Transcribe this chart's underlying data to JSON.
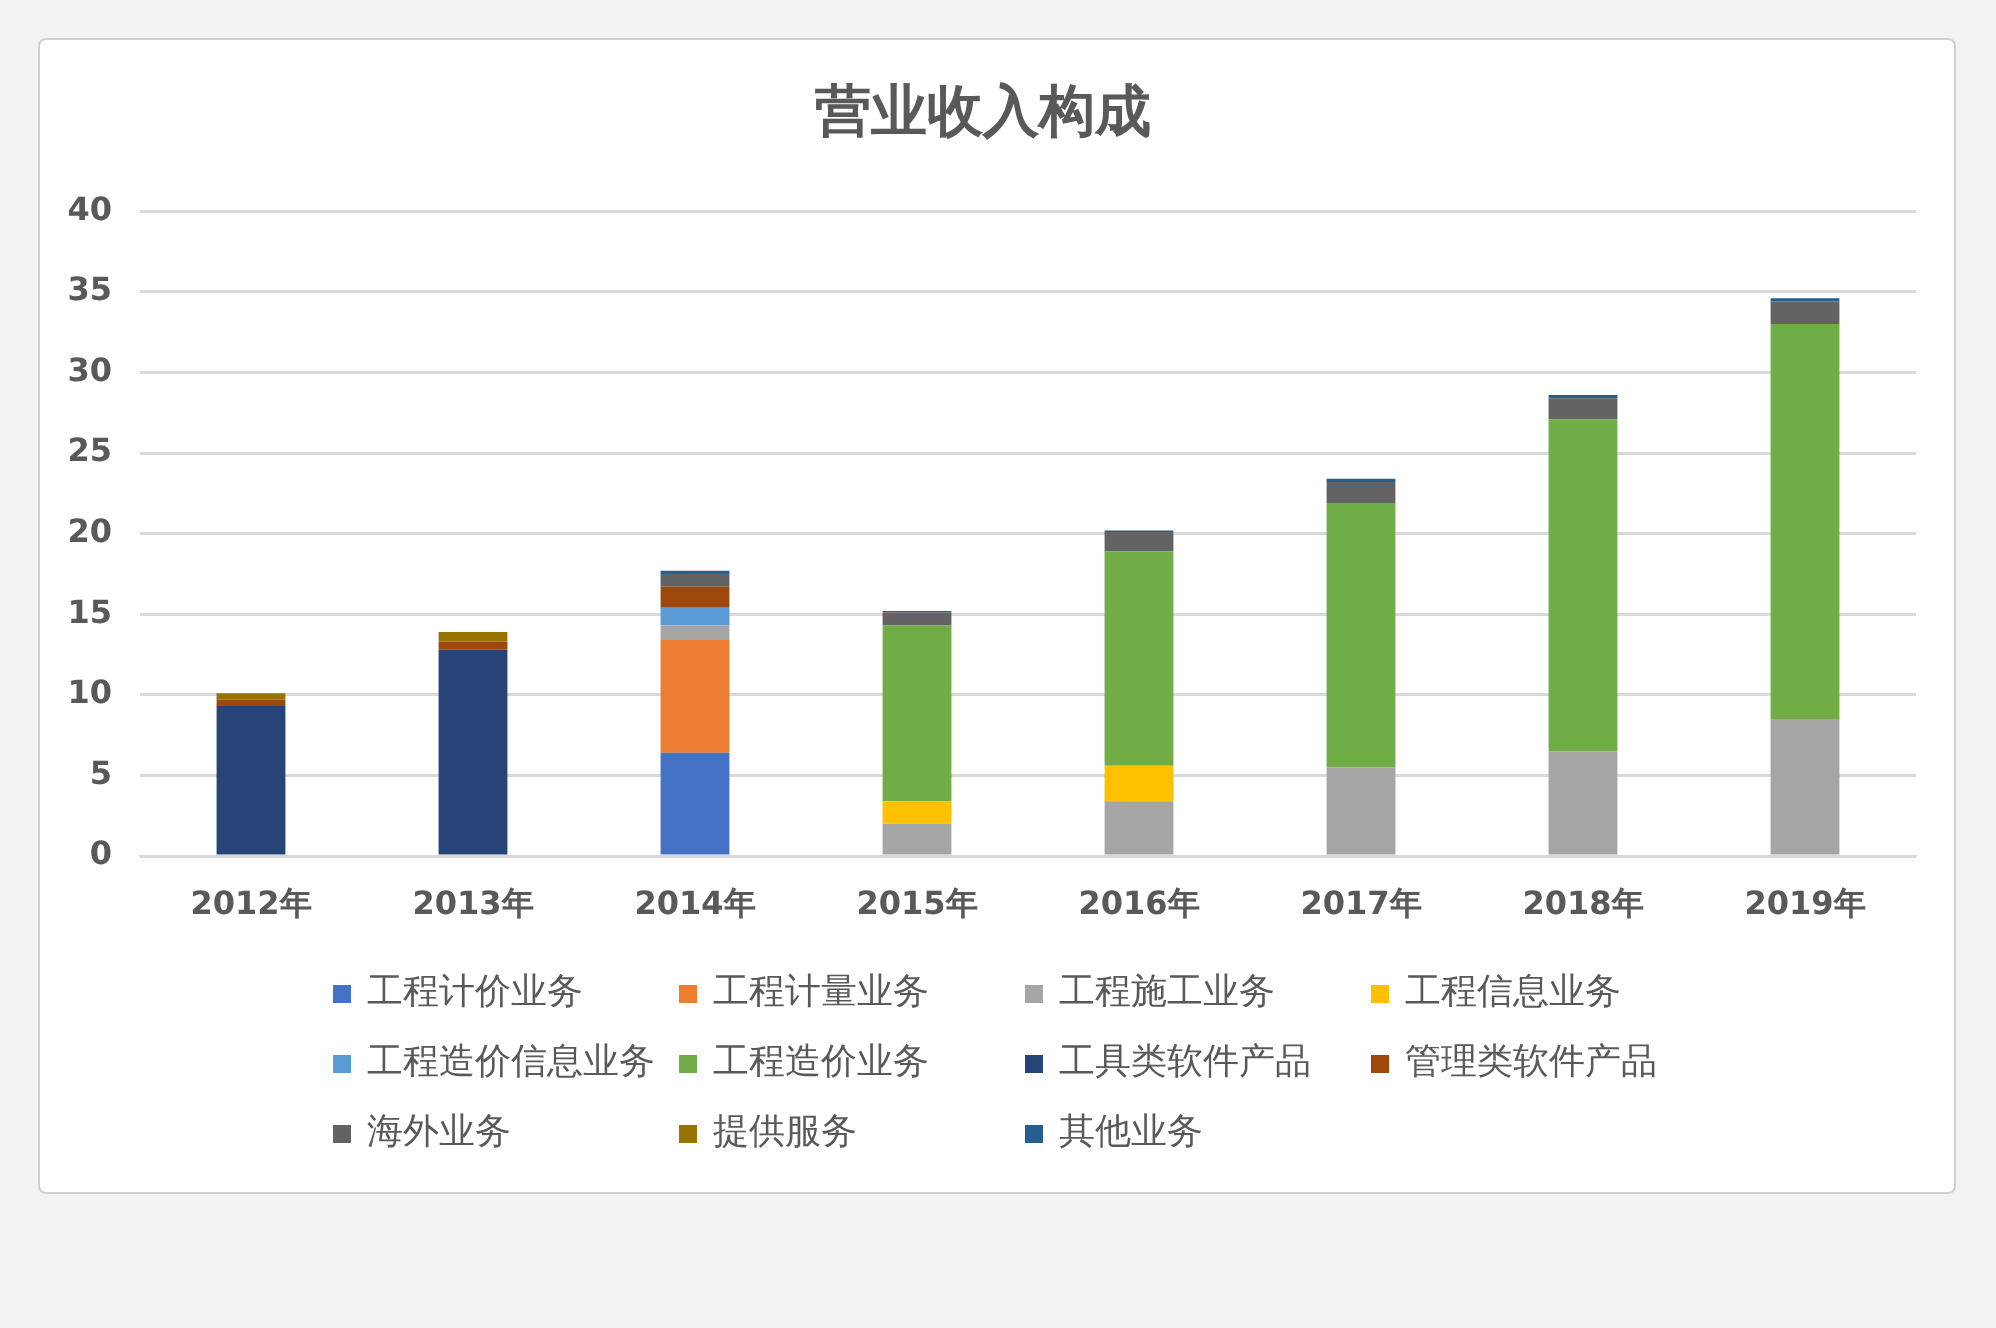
{
  "chart_data": {
    "type": "bar",
    "title": "营业收入构成",
    "stacked": true,
    "categories": [
      "2012年",
      "2013年",
      "2014年",
      "2015年",
      "2016年",
      "2017年",
      "2018年",
      "2019年"
    ],
    "ylim": [
      0,
      40
    ],
    "yticks": [
      0,
      5,
      10,
      15,
      20,
      25,
      30,
      35,
      40
    ],
    "grid": "y",
    "legend": "bottom",
    "series": [
      {
        "name": "工程计价业务",
        "color": "#4472c4",
        "values": [
          null,
          null,
          6.4,
          null,
          null,
          null,
          null,
          null
        ]
      },
      {
        "name": "工程计量业务",
        "color": "#ed7d31",
        "values": [
          null,
          null,
          7.0,
          null,
          null,
          null,
          null,
          null
        ]
      },
      {
        "name": "工程施工业务",
        "color": "#a5a5a5",
        "values": [
          null,
          null,
          0.9,
          2.0,
          3.4,
          5.5,
          6.5,
          8.5
        ]
      },
      {
        "name": "工程信息业务",
        "color": "#ffc000",
        "values": [
          null,
          null,
          null,
          1.4,
          2.2,
          null,
          null,
          null
        ]
      },
      {
        "name": "工程造价信息业务",
        "color": "#5b9bd5",
        "values": [
          null,
          null,
          1.1,
          null,
          null,
          null,
          null,
          null
        ]
      },
      {
        "name": "工程造价业务",
        "color": "#70ad47",
        "values": [
          null,
          null,
          null,
          10.9,
          13.3,
          16.4,
          20.6,
          24.5
        ]
      },
      {
        "name": "工具类软件产品",
        "color": "#264478",
        "values": [
          9.3,
          12.8,
          null,
          null,
          null,
          null,
          null,
          null
        ]
      },
      {
        "name": "管理类软件产品",
        "color": "#9e480e",
        "values": [
          0.4,
          0.5,
          1.3,
          null,
          null,
          null,
          null,
          null
        ]
      },
      {
        "name": "海外业务",
        "color": "#636363",
        "values": [
          null,
          null,
          0.8,
          0.8,
          1.2,
          1.3,
          1.3,
          1.4
        ]
      },
      {
        "name": "提供服务",
        "color": "#997300",
        "values": [
          0.4,
          0.6,
          null,
          null,
          null,
          null,
          null,
          null
        ]
      },
      {
        "name": "其他业务",
        "color": "#255e91",
        "values": [
          null,
          null,
          0.2,
          0.1,
          0.1,
          0.2,
          0.2,
          0.2
        ]
      }
    ]
  }
}
